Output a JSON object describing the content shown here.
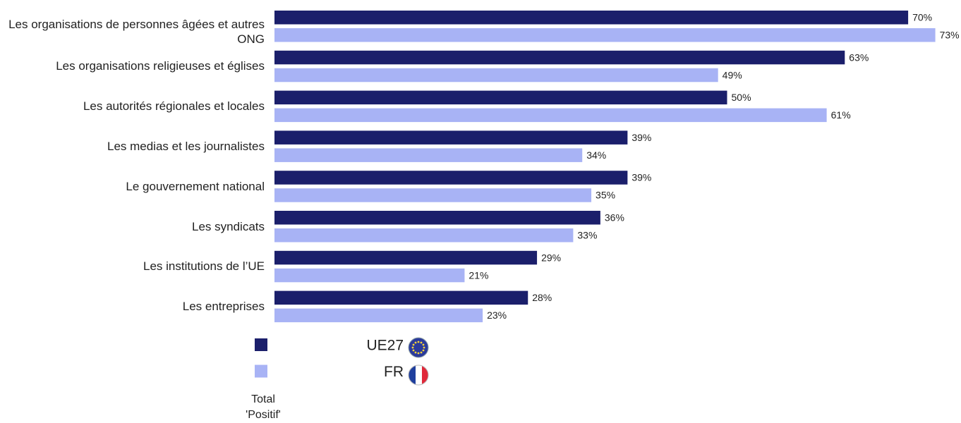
{
  "chart_data": {
    "type": "bar",
    "orientation": "horizontal",
    "categories": [
      "Les organisations de personnes âgées et autres ONG",
      "Les organisations religieuses et églises",
      "Les autorités régionales et locales",
      "Les medias et les journalistes",
      "Le gouvernement national",
      "Les syndicats",
      "Les institutions de l’UE",
      "Les entreprises"
    ],
    "series": [
      {
        "name": "UE27",
        "color": "#1b1f6b",
        "values": [
          70,
          63,
          50,
          39,
          39,
          36,
          29,
          28
        ],
        "value_labels": [
          "70%",
          "63%",
          "50%",
          "39%",
          "39%",
          "36%",
          "29%",
          "28%"
        ]
      },
      {
        "name": "FR",
        "color": "#a8b3f5",
        "values": [
          73,
          49,
          61,
          34,
          35,
          33,
          21,
          23
        ],
        "value_labels": [
          "73%",
          "49%",
          "61%",
          "34%",
          "35%",
          "33%",
          "21%",
          "23%"
        ]
      }
    ],
    "legend_title": "Total 'Positif'"
  }
}
